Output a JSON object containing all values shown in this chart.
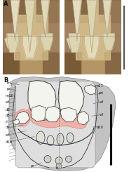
{
  "bg_color": "#ffffff",
  "label_A": "A",
  "label_B": "B",
  "panel_label_fontsize": 6,
  "lfs": 3.8,
  "photo_bg": "#c4a876",
  "photo_bone_color": "#e8dfc0",
  "photo_dark": "#7a5c38",
  "photo_mid": "#a07848",
  "drawing_matrix_outer": "#c0c0c0",
  "drawing_matrix_inner": "#d8d8d8",
  "drawing_bone_light": "#e8e8e4",
  "drawing_white_tooth": "#f4f4ee",
  "drawing_pink": "#f0b0a8",
  "drawing_line": "#333333",
  "drawing_label_line": "#666666",
  "scale_bar_color": "#111111"
}
